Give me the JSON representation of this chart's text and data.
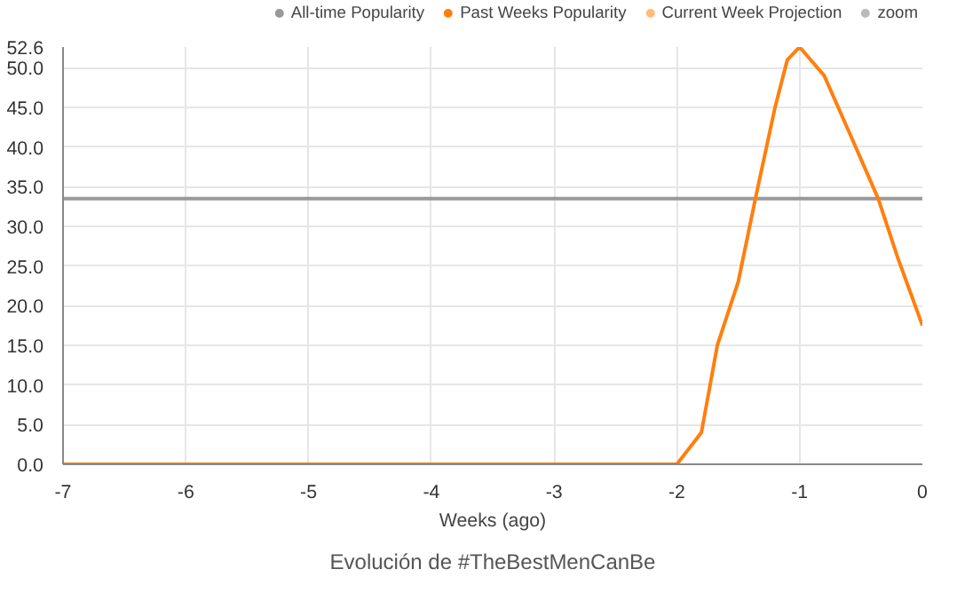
{
  "chart_data": {
    "type": "line",
    "xlabel": "Weeks (ago)",
    "annotations": [
      "Evolución de #TheBestMenCanBe"
    ],
    "xlim": [
      -7,
      0
    ],
    "xticks": [
      -7,
      -6,
      -5,
      -4,
      -3,
      -2,
      -1,
      0
    ],
    "ylim": [
      0,
      52.6
    ],
    "yticks": [
      {
        "value": 0,
        "label": "0.0"
      },
      {
        "value": 5,
        "label": "5.0"
      },
      {
        "value": 10,
        "label": "10.0"
      },
      {
        "value": 15,
        "label": "15.0"
      },
      {
        "value": 20,
        "label": "20.0"
      },
      {
        "value": 25,
        "label": "25.0"
      },
      {
        "value": 30,
        "label": "30.0"
      },
      {
        "value": 35,
        "label": "35.0"
      },
      {
        "value": 40,
        "label": "40.0"
      },
      {
        "value": 45,
        "label": "45.0"
      },
      {
        "value": 50,
        "label": "50.0"
      },
      {
        "value": 52.6,
        "label": "52.6"
      }
    ],
    "grid": true,
    "legend": "top right",
    "marker": "none",
    "line_style": "solid",
    "series": [
      {
        "name": "All-time Popularity",
        "color": "#999999",
        "x": [
          -7,
          0
        ],
        "values": [
          33.5,
          33.5
        ]
      },
      {
        "name": "Past Weeks Popularity",
        "color": "#ff7f0e",
        "x": [
          -7,
          -6,
          -5,
          -4,
          -3,
          -2,
          -1.8,
          -1.67,
          -1.5,
          -1.36,
          -1.2,
          -1.1,
          -1,
          -0.8,
          -0.6,
          -0.36,
          -0.2,
          0
        ],
        "values": [
          0,
          0,
          0,
          0,
          0,
          0,
          4,
          15,
          23,
          33.5,
          45,
          51,
          52.6,
          49,
          42,
          33.5,
          26,
          17.5
        ]
      },
      {
        "name": "Current Week Projection",
        "color": "#ffbb78"
      },
      {
        "name": "zoom",
        "color": "#bbbbbb"
      }
    ]
  }
}
